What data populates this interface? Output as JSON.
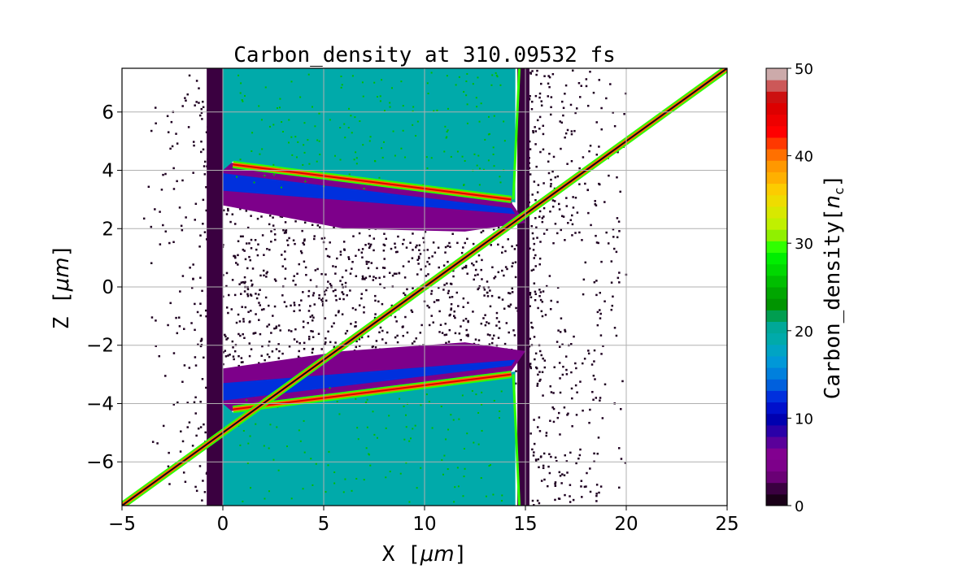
{
  "chart_data": {
    "type": "heatmap",
    "title": "Carbon_density at 310.09532 fs",
    "xlabel": "X [μm]",
    "ylabel": "Z [μm]",
    "xlabel_parts": {
      "name": "X",
      "unit": "μm"
    },
    "ylabel_parts": {
      "name": "Z",
      "unit": "μm"
    },
    "xlim": [
      -5,
      25
    ],
    "ylim": [
      -7.5,
      7.5
    ],
    "xticks": [
      -5,
      0,
      5,
      10,
      15,
      20,
      25
    ],
    "xtick_labels": [
      "−5",
      "0",
      "5",
      "10",
      "15",
      "20",
      "25"
    ],
    "yticks": [
      -6,
      -4,
      -2,
      0,
      2,
      4,
      6
    ],
    "ytick_labels": [
      "−6",
      "−4",
      "−2",
      "0",
      "2",
      "4",
      "6"
    ],
    "grid": true,
    "colorbar": {
      "label": "Carbon_density[n_c]",
      "label_main": "Carbon_density[",
      "label_sym": "n",
      "label_sub": "c",
      "label_end": "]",
      "range": [
        0,
        50
      ],
      "ticks": [
        0,
        10,
        20,
        30,
        40,
        50
      ],
      "tick_labels": [
        "0",
        "10",
        "20",
        "30",
        "40",
        "50"
      ],
      "colors": [
        "#1a0018",
        "#3a0040",
        "#6a0075",
        "#7d008a",
        "#820090",
        "#5a009a",
        "#2a00a8",
        "#0000b0",
        "#0010cc",
        "#0030dd",
        "#0060dd",
        "#0080dd",
        "#0098d8",
        "#00a4c4",
        "#00aaaa",
        "#00a898",
        "#009e50",
        "#009400",
        "#00a600",
        "#00be00",
        "#00d800",
        "#00ee00",
        "#30ff00",
        "#90f000",
        "#c0f000",
        "#d8e800",
        "#eedc00",
        "#fccc00",
        "#ffb000",
        "#ff9800",
        "#ff7000",
        "#ff3800",
        "#ff0000",
        "#ee0000",
        "#dd0000",
        "#cc1010",
        "#cc5858",
        "#ccaaaa"
      ]
    },
    "regions": [
      {
        "name": "upper-target-bulk",
        "x": [
          0,
          14.5
        ],
        "z_front": [
          4.3,
          2.9
        ],
        "z_top": 7.5,
        "density": 19
      },
      {
        "name": "lower-target-bulk",
        "x": [
          0,
          14.5
        ],
        "z_front": [
          -4.3,
          -2.9
        ],
        "z_top": -7.5,
        "density": 19
      },
      {
        "name": "upper-compressed-front",
        "x": [
          0.5,
          14.3
        ],
        "z": [
          4.2,
          3.0
        ],
        "density": 45
      },
      {
        "name": "lower-compressed-front",
        "x": [
          0.5,
          14.3
        ],
        "z": [
          -4.2,
          -3.0
        ],
        "density": 45
      },
      {
        "name": "rear-surface-upper",
        "x": 14.7,
        "z": [
          3.0,
          7.5
        ],
        "density": 30
      },
      {
        "name": "rear-surface-lower",
        "x": 14.7,
        "z": [
          -3.0,
          -7.5
        ],
        "density": 30
      },
      {
        "name": "expanded-plasma",
        "x": [
          -5,
          25
        ],
        "z": [
          -7.5,
          7.5
        ],
        "density": 1
      }
    ]
  }
}
